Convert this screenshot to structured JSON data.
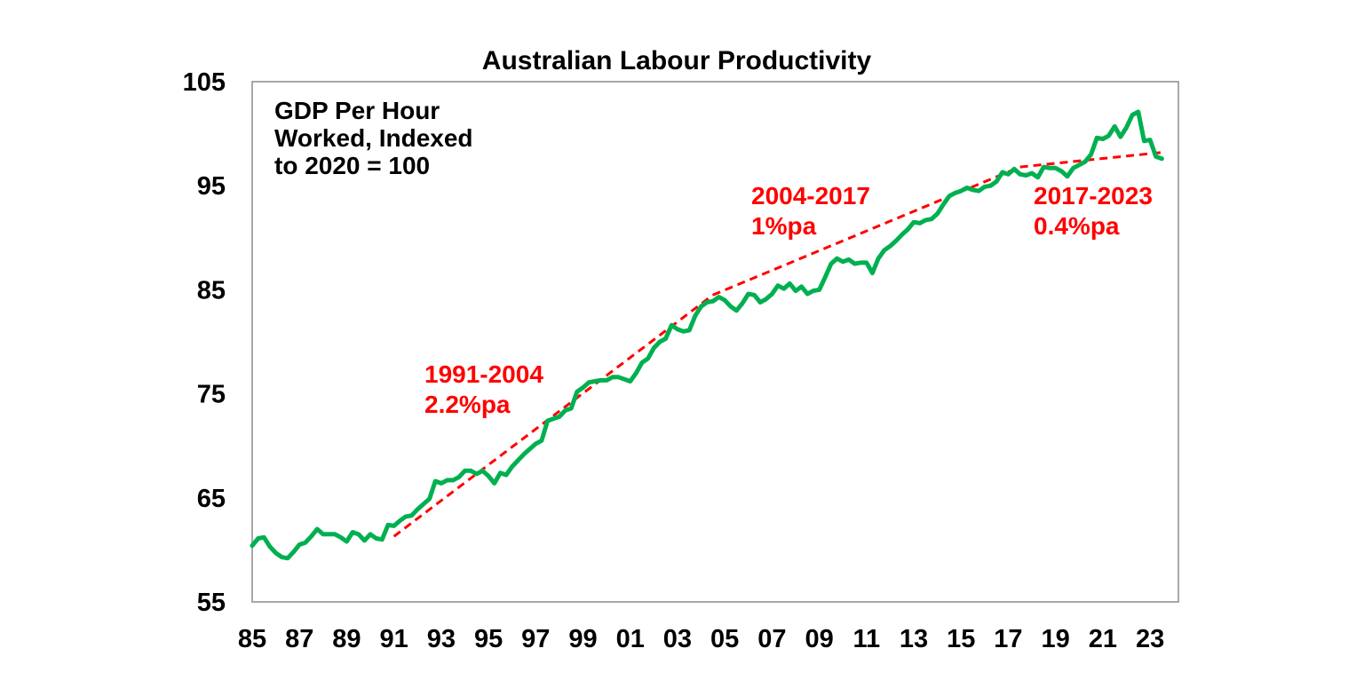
{
  "chart_data": {
    "type": "line",
    "title": "Australian Labour Productivity",
    "note_lines": [
      "GDP Per Hour",
      "Worked, Indexed",
      "to 2020 = 100"
    ],
    "xlabel": "",
    "ylabel": "",
    "xlim": [
      1985,
      2024.2
    ],
    "ylim": [
      55,
      105
    ],
    "y_ticks": [
      55,
      65,
      75,
      85,
      95,
      105
    ],
    "x_tick_years": [
      1985,
      1987,
      1989,
      1991,
      1993,
      1995,
      1997,
      1999,
      2001,
      2003,
      2005,
      2007,
      2009,
      2011,
      2013,
      2015,
      2017,
      2019,
      2021,
      2023
    ],
    "x_tick_labels": [
      "85",
      "87",
      "89",
      "91",
      "93",
      "95",
      "97",
      "99",
      "01",
      "03",
      "05",
      "07",
      "09",
      "11",
      "13",
      "15",
      "17",
      "19",
      "21",
      "23"
    ],
    "grid": false,
    "legend": "none",
    "colors": {
      "series": "#00b050",
      "trend": "#ff0000"
    },
    "series": [
      {
        "x": [
          1985.0,
          1985.25,
          1985.5,
          1985.75,
          1986.0,
          1986.25,
          1986.5,
          1986.75,
          1987.0,
          1987.25,
          1987.5,
          1987.75,
          1988.0,
          1988.25,
          1988.5,
          1988.75,
          1989.0,
          1989.25,
          1989.5,
          1989.75,
          1990.0,
          1990.25,
          1990.5,
          1990.75,
          1991.0,
          1991.25,
          1991.5,
          1991.75,
          1992.0,
          1992.25,
          1992.5,
          1992.75,
          1993.0,
          1993.25,
          1993.5,
          1993.75,
          1994.0,
          1994.25,
          1994.5,
          1994.75,
          1995.0,
          1995.25,
          1995.5,
          1995.75,
          1996.0,
          1996.25,
          1996.5,
          1996.75,
          1997.0,
          1997.25,
          1997.5,
          1997.75,
          1998.0,
          1998.25,
          1998.5,
          1998.75,
          1999.0,
          1999.25,
          1999.5,
          1999.75,
          2000.0,
          2000.25,
          2000.5,
          2000.75,
          2001.0,
          2001.25,
          2001.5,
          2001.75,
          2002.0,
          2002.25,
          2002.5,
          2002.75,
          2003.0,
          2003.25,
          2003.5,
          2003.75,
          2004.0,
          2004.25,
          2004.5,
          2004.75,
          2005.0,
          2005.25,
          2005.5,
          2005.75,
          2006.0,
          2006.25,
          2006.5,
          2006.75,
          2007.0,
          2007.25,
          2007.5,
          2007.75,
          2008.0,
          2008.25,
          2008.5,
          2008.75,
          2009.0,
          2009.25,
          2009.5,
          2009.75,
          2010.0,
          2010.25,
          2010.5,
          2010.75,
          2011.0,
          2011.25,
          2011.5,
          2011.75,
          2012.0,
          2012.25,
          2012.5,
          2012.75,
          2013.0,
          2013.25,
          2013.5,
          2013.75,
          2014.0,
          2014.25,
          2014.5,
          2014.75,
          2015.0,
          2015.25,
          2015.5,
          2015.75,
          2016.0,
          2016.25,
          2016.5,
          2016.75,
          2017.0,
          2017.25,
          2017.5,
          2017.75,
          2018.0,
          2018.25,
          2018.5,
          2018.75,
          2019.0,
          2019.25,
          2019.5,
          2019.75,
          2020.0,
          2020.25,
          2020.5,
          2020.75,
          2021.0,
          2021.25,
          2021.5,
          2021.75,
          2022.0,
          2022.25,
          2022.5,
          2022.75,
          2023.0,
          2023.25,
          2023.5
        ],
        "values": [
          60.4,
          61.1,
          61.2,
          60.3,
          59.7,
          59.3,
          59.2,
          59.8,
          60.5,
          60.7,
          61.3,
          62.0,
          61.5,
          61.5,
          61.5,
          61.2,
          60.8,
          61.7,
          61.5,
          60.9,
          61.5,
          61.1,
          61.0,
          62.4,
          62.3,
          62.8,
          63.2,
          63.3,
          63.9,
          64.4,
          64.9,
          66.6,
          66.4,
          66.7,
          66.7,
          67.0,
          67.6,
          67.6,
          67.3,
          67.6,
          67.1,
          66.4,
          67.4,
          67.2,
          68.0,
          68.6,
          69.2,
          69.7,
          70.2,
          70.5,
          72.4,
          72.6,
          72.8,
          73.4,
          73.6,
          75.2,
          75.6,
          76.1,
          76.2,
          76.3,
          76.3,
          76.6,
          76.6,
          76.4,
          76.2,
          77.0,
          78.0,
          78.4,
          79.4,
          80.0,
          80.3,
          81.6,
          81.2,
          81.0,
          81.1,
          82.5,
          83.4,
          83.8,
          83.9,
          84.3,
          84.0,
          83.4,
          83.0,
          83.7,
          84.6,
          84.5,
          83.8,
          84.1,
          84.6,
          85.4,
          85.1,
          85.6,
          84.9,
          85.3,
          84.6,
          84.9,
          85.0,
          86.2,
          87.5,
          88.0,
          87.7,
          87.9,
          87.5,
          87.6,
          87.6,
          86.6,
          88.0,
          88.8,
          89.2,
          89.7,
          90.3,
          90.8,
          91.5,
          91.4,
          91.7,
          91.8,
          92.3,
          93.2,
          94.0,
          94.3,
          94.5,
          94.8,
          94.6,
          94.5,
          94.9,
          95.0,
          95.4,
          96.3,
          96.1,
          96.6,
          96.1,
          96.0,
          96.2,
          95.8,
          96.8,
          96.7,
          96.7,
          96.4,
          95.9,
          96.7,
          97.0,
          97.3,
          98.0,
          99.6,
          99.5,
          99.8,
          100.7,
          99.7,
          100.6,
          101.8,
          102.1,
          99.3,
          99.4,
          97.8,
          97.6
        ]
      }
    ],
    "trend_lines": [
      {
        "x": [
          1991.0,
          2004.5
        ],
        "values": [
          61.3,
          84.5
        ]
      },
      {
        "x": [
          2004.5,
          2017.5
        ],
        "values": [
          84.5,
          96.8
        ]
      },
      {
        "x": [
          2017.5,
          2023.5
        ],
        "values": [
          96.8,
          98.2
        ]
      }
    ],
    "annotations": [
      {
        "lines": [
          "1991-2004",
          "2.2%pa"
        ]
      },
      {
        "lines": [
          "2004-2017",
          "1%pa"
        ]
      },
      {
        "lines": [
          "2017-2023",
          "0.4%pa"
        ]
      }
    ]
  }
}
